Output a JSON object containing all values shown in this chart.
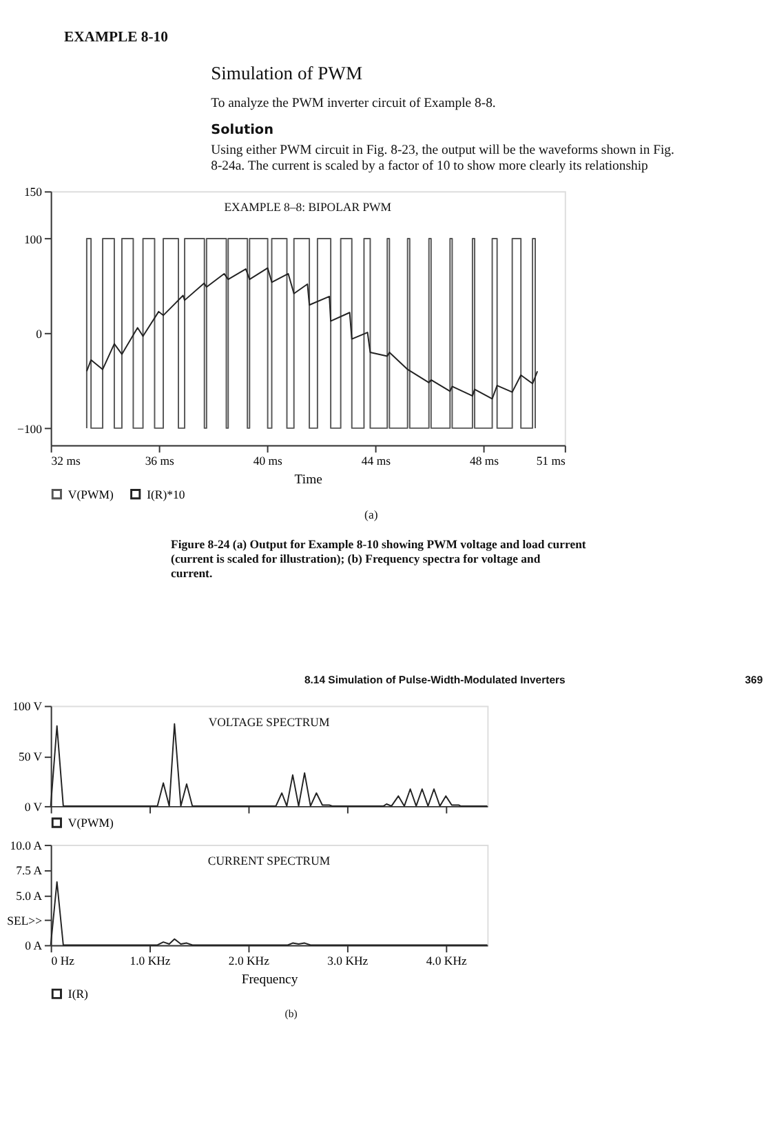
{
  "chart_data": [
    {
      "type": "line",
      "title": "EXAMPLE 8–8: BIPOLAR PWM",
      "xlabel": "Time",
      "xlim": [
        32,
        51
      ],
      "xticks": [
        {
          "value": 32,
          "label": "32 ms"
        },
        {
          "value": 36,
          "label": "36 ms"
        },
        {
          "value": 40,
          "label": "40 ms"
        },
        {
          "value": 44,
          "label": "44 ms"
        },
        {
          "value": 48,
          "label": "48 ms"
        },
        {
          "value": 51,
          "label": "51 ms"
        }
      ],
      "ylim": [
        -118,
        150
      ],
      "yticks": [
        -100,
        0,
        100,
        150
      ],
      "grid": false,
      "legend": "bottom left",
      "marker": "none",
      "series": [
        {
          "name": "V(PWM)",
          "type": "step",
          "color": "#555555",
          "x": [
            33.33,
            33.33,
            33.49,
            33.92,
            34.35,
            34.63,
            35.05,
            35.41,
            35.84,
            36.16,
            36.72,
            36.95,
            37.68,
            37.76,
            38.49,
            38.56,
            39.27,
            39.35,
            40.02,
            40.17,
            40.73,
            40.99,
            41.56,
            41.86,
            42.35,
            42.72,
            43.13,
            43.58,
            43.81,
            44.44,
            44.52,
            45.19,
            45.27,
            45.98,
            46.06,
            46.76,
            46.84,
            47.59,
            47.67,
            48.32,
            48.5,
            49.06,
            49.38,
            49.81,
            49.91
          ],
          "values": [
            -100,
            100,
            -100,
            100,
            -100,
            100,
            -100,
            100,
            -100,
            100,
            -100,
            100,
            -100,
            100,
            -100,
            100,
            -100,
            100,
            -100,
            100,
            -100,
            100,
            -100,
            100,
            -100,
            100,
            -100,
            100,
            -100,
            100,
            -100,
            100,
            -100,
            100,
            -100,
            100,
            -100,
            100,
            -100,
            100,
            -100,
            100,
            -100,
            100,
            -100
          ]
        },
        {
          "name": "I(R)*10",
          "type": "line",
          "color": "#222222",
          "x": [
            33.33,
            33.49,
            33.92,
            34.35,
            34.63,
            35.21,
            35.41,
            35.99,
            36.16,
            36.89,
            36.95,
            37.67,
            37.76,
            38.41,
            38.56,
            39.21,
            39.35,
            40.02,
            40.17,
            40.78,
            40.99,
            41.49,
            41.56,
            42.3,
            42.35,
            43.05,
            43.13,
            43.71,
            43.81,
            44.44,
            44.52,
            45.19,
            45.98,
            46.06,
            46.76,
            46.84,
            47.59,
            47.67,
            48.32,
            48.5,
            49.06,
            49.38,
            49.81,
            49.99
          ],
          "values": [
            -40,
            -28,
            -38,
            -11,
            -22,
            6,
            -3,
            23,
            19,
            40,
            35,
            53,
            49,
            63,
            57,
            68,
            57,
            69,
            54,
            63,
            42,
            52,
            30,
            39,
            13,
            22,
            -6,
            1,
            -20,
            -24,
            -20,
            -38,
            -52,
            -49,
            -61,
            -56,
            -66,
            -59,
            -69,
            -55,
            -62,
            -44,
            -53,
            -40
          ]
        }
      ],
      "annotations": [
        "EXAMPLE 8-10",
        "Simulation of PWM",
        "To analyze the PWM inverter circuit of Example 8-8.",
        "Solution",
        "Using either PWM circuit in Fig. 8-23, the output will be the waveforms shown in Fig. 8-24a. The current is scaled by a factor of 10 to show more clearly its relationship",
        "(a)",
        "Figure 8-24 (a) Output for Example 8-10 showing PWM voltage and load current (current is scaled for illustration); (b) Frequency spectra for voltage and current."
      ]
    },
    {
      "type": "line",
      "title": "VOLTAGE SPECTRUM",
      "xlim": [
        0,
        4.42
      ],
      "xticks": [
        0,
        1,
        2,
        3,
        4
      ],
      "tick_labels": "y",
      "ylim": [
        0,
        100
      ],
      "yticks": [
        {
          "value": 0,
          "label": "0 V"
        },
        {
          "value": 50,
          "label": "50 V"
        },
        {
          "value": 100,
          "label": "100 V"
        }
      ],
      "grid": false,
      "legend": "bottom left",
      "marker": "none",
      "series": [
        {
          "name": "V(PWM)",
          "color": "#222222",
          "x": [
            0,
            0.063,
            0.127,
            1.08,
            1.14,
            1.2,
            1.253,
            1.317,
            1.376,
            1.434,
            2.28,
            2.34,
            2.39,
            2.45,
            2.51,
            2.57,
            2.63,
            2.69,
            2.75,
            2.82,
            2.85,
            3.37,
            3.4,
            3.45,
            3.52,
            3.58,
            3.64,
            3.7,
            3.76,
            3.82,
            3.88,
            3.94,
            4.0,
            4.06,
            4.13,
            4.15,
            4.42
          ],
          "values": [
            0,
            80,
            0,
            0,
            23,
            0,
            82,
            0,
            22,
            0,
            0,
            13,
            0,
            31,
            0,
            33,
            0,
            13,
            1,
            1,
            0,
            0,
            2,
            0,
            10,
            0,
            17,
            0,
            17,
            0,
            17,
            0,
            10,
            1,
            1,
            0,
            0
          ]
        }
      ],
      "annotations": [
        "8.14 Simulation of Pulse-Width-Modulated Inverters",
        "369"
      ]
    },
    {
      "type": "line",
      "title": "CURRENT SPECTRUM",
      "xlabel": "Frequency",
      "xlim": [
        0,
        4.42
      ],
      "xticks": [
        {
          "value": 0,
          "label": "0 Hz"
        },
        {
          "value": 1,
          "label": "1.0 KHz"
        },
        {
          "value": 2,
          "label": "2.0 KHz"
        },
        {
          "value": 3,
          "label": "3.0 KHz"
        },
        {
          "value": 4,
          "label": "4.0 KHz"
        }
      ],
      "ylim": [
        0,
        10
      ],
      "yticks": [
        {
          "value": 0,
          "label": "0 A"
        },
        {
          "value": 2.5,
          "label": "SEL>>"
        },
        {
          "value": 5,
          "label": "5.0 A"
        },
        {
          "value": 7.5,
          "label": "7.5 A"
        },
        {
          "value": 10,
          "label": "10.0 A"
        }
      ],
      "grid": false,
      "legend": "bottom left",
      "marker": "none",
      "series": [
        {
          "name": "I(R)",
          "color": "#222222",
          "x": [
            0,
            0.063,
            0.127,
            1.08,
            1.14,
            1.2,
            1.253,
            1.317,
            1.376,
            1.434,
            2.4,
            2.45,
            2.51,
            2.57,
            2.63,
            4.42
          ],
          "values": [
            0,
            6.3,
            0,
            0,
            0.3,
            0.1,
            0.6,
            0.1,
            0.2,
            0,
            0,
            0.2,
            0.1,
            0.2,
            0,
            0
          ]
        }
      ],
      "annotations": [
        "(b)"
      ]
    }
  ]
}
